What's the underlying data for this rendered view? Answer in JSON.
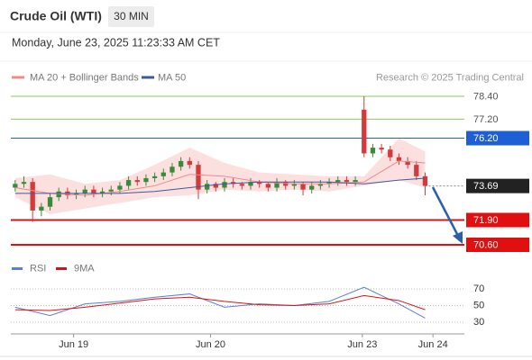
{
  "chart_data": [
    {
      "type": "candlestick",
      "title": "Crude Oil (WTI)",
      "timeframe": "30 MIN",
      "subtitle": "Monday, June 23, 2025 11:23:33 AM CET",
      "credit": "Research © 2025 Trading Central",
      "x": [
        0,
        1,
        2,
        3,
        4,
        5,
        6,
        7,
        8,
        9,
        10,
        11,
        12,
        13,
        14,
        15,
        16,
        17,
        18,
        19,
        20,
        21,
        22,
        23,
        24,
        25,
        26,
        27,
        28,
        29,
        30,
        31,
        32,
        33,
        34,
        35,
        36,
        37,
        38,
        39,
        40,
        41,
        42,
        43,
        44,
        45,
        46,
        47
      ],
      "open": [
        73.6,
        73.8,
        73.9,
        72.4,
        72.6,
        73.1,
        73.4,
        73.2,
        73.3,
        73.5,
        73.3,
        73.4,
        73.5,
        73.7,
        74.0,
        73.9,
        74.1,
        74.2,
        74.4,
        74.7,
        75.0,
        74.8,
        73.5,
        73.8,
        73.6,
        73.9,
        73.8,
        73.7,
        73.9,
        73.8,
        73.6,
        73.9,
        73.7,
        73.8,
        73.5,
        73.7,
        73.8,
        73.9,
        74.0,
        73.9,
        77.7,
        75.4,
        75.7,
        75.6,
        75.2,
        75.0,
        74.8,
        74.2
      ],
      "high": [
        74.0,
        74.2,
        74.1,
        72.8,
        73.3,
        73.6,
        73.6,
        73.5,
        73.7,
        73.7,
        73.6,
        73.7,
        73.9,
        74.2,
        74.2,
        74.3,
        74.4,
        74.6,
        74.9,
        75.2,
        75.2,
        75.0,
        74.0,
        73.9,
        74.1,
        74.1,
        73.9,
        74.1,
        74.0,
        73.9,
        74.1,
        74.0,
        74.0,
        73.9,
        73.9,
        74.0,
        74.1,
        74.2,
        74.2,
        74.2,
        78.4,
        75.9,
        75.9,
        75.8,
        75.4,
        75.2,
        75.0,
        74.4
      ],
      "low": [
        73.4,
        73.6,
        71.8,
        72.1,
        72.4,
        72.9,
        73.0,
        73.0,
        73.1,
        73.1,
        73.1,
        73.2,
        73.3,
        73.5,
        73.7,
        73.7,
        73.9,
        74.0,
        74.2,
        74.5,
        74.6,
        73.0,
        73.3,
        73.4,
        73.4,
        73.6,
        73.5,
        73.5,
        73.6,
        73.4,
        73.4,
        73.5,
        73.5,
        73.2,
        73.3,
        73.5,
        73.6,
        73.7,
        73.7,
        73.7,
        75.2,
        75.2,
        75.4,
        75.0,
        74.8,
        74.6,
        74.0,
        73.2
      ],
      "close": [
        73.8,
        73.9,
        72.4,
        72.6,
        73.1,
        73.4,
        73.2,
        73.3,
        73.5,
        73.3,
        73.4,
        73.5,
        73.7,
        74.0,
        73.9,
        74.1,
        74.2,
        74.4,
        74.7,
        75.0,
        74.8,
        73.5,
        73.8,
        73.6,
        73.9,
        73.8,
        73.7,
        73.9,
        73.8,
        73.6,
        73.9,
        73.7,
        73.8,
        73.5,
        73.7,
        73.8,
        73.9,
        74.0,
        73.9,
        74.0,
        75.4,
        75.7,
        75.6,
        75.2,
        75.0,
        74.8,
        74.2,
        73.7
      ],
      "up_color": "#3a8a3a",
      "down_color": "#d43a3a",
      "overlay_x": [
        0,
        4,
        8,
        12,
        16,
        20,
        24,
        28,
        32,
        36,
        40,
        44,
        47
      ],
      "overlays": [
        {
          "name": "MA 20 + Bollinger Bands",
          "color": "#f08a8a",
          "band_color": "#fbd3d3",
          "values": [
            73.6,
            73.3,
            73.2,
            73.4,
            73.7,
            74.3,
            74.2,
            73.9,
            73.8,
            73.8,
            73.9,
            75.0,
            74.9
          ],
          "upper": [
            74.1,
            74.3,
            73.8,
            74.0,
            74.8,
            75.7,
            74.9,
            74.4,
            74.3,
            74.2,
            74.2,
            76.2,
            75.5
          ],
          "lower": [
            73.1,
            72.2,
            72.5,
            72.8,
            73.1,
            73.2,
            73.5,
            73.4,
            73.5,
            73.4,
            73.7,
            74.0,
            73.6
          ]
        },
        {
          "name": "MA 50",
          "color": "#3d5a9c",
          "values": [
            73.3,
            73.3,
            73.3,
            73.3,
            73.4,
            73.6,
            73.8,
            73.9,
            73.9,
            73.9,
            73.8,
            74.0,
            74.1
          ]
        }
      ],
      "levels": [
        {
          "value": 78.4,
          "label": "78.40",
          "color": "#8cc46c"
        },
        {
          "value": 77.2,
          "label": "77.20",
          "color": "#8cc46c"
        },
        {
          "value": 76.2,
          "label": "76.20",
          "color": "#1f5fd6"
        },
        {
          "value": 71.9,
          "label": "71.90",
          "color": "#e01010"
        },
        {
          "value": 70.6,
          "label": "70.60",
          "color": "#e01010"
        }
      ],
      "current_price": {
        "value": 73.69,
        "label": "73.69",
        "color": "#222222"
      },
      "xlim": [
        -0.5,
        51.5
      ],
      "ylim": [
        70,
        79
      ],
      "xticks": [
        {
          "value": 6.7,
          "label": "Jun 19"
        },
        {
          "value": 22.4,
          "label": "Jun 20"
        },
        {
          "value": 39.8,
          "label": "Jun 23"
        },
        {
          "value": 47.9,
          "label": "Jun 24"
        }
      ]
    },
    {
      "type": "line",
      "x": [
        0,
        4,
        8,
        12,
        16,
        20,
        24,
        28,
        32,
        36,
        40,
        44,
        47
      ],
      "series": [
        {
          "name": "RSI",
          "color": "#5b7fd6",
          "values": [
            48,
            38,
            52,
            55,
            60,
            64,
            48,
            52,
            50,
            55,
            72,
            52,
            35
          ]
        },
        {
          "name": "9MA",
          "color": "#e01010",
          "values": [
            45,
            44,
            48,
            53,
            58,
            60,
            55,
            51,
            50,
            52,
            62,
            56,
            45
          ]
        }
      ],
      "xlim": [
        -0.5,
        51.5
      ],
      "ylim": [
        22,
        79
      ],
      "yticks": [
        30,
        50,
        70
      ],
      "grid": true
    }
  ]
}
